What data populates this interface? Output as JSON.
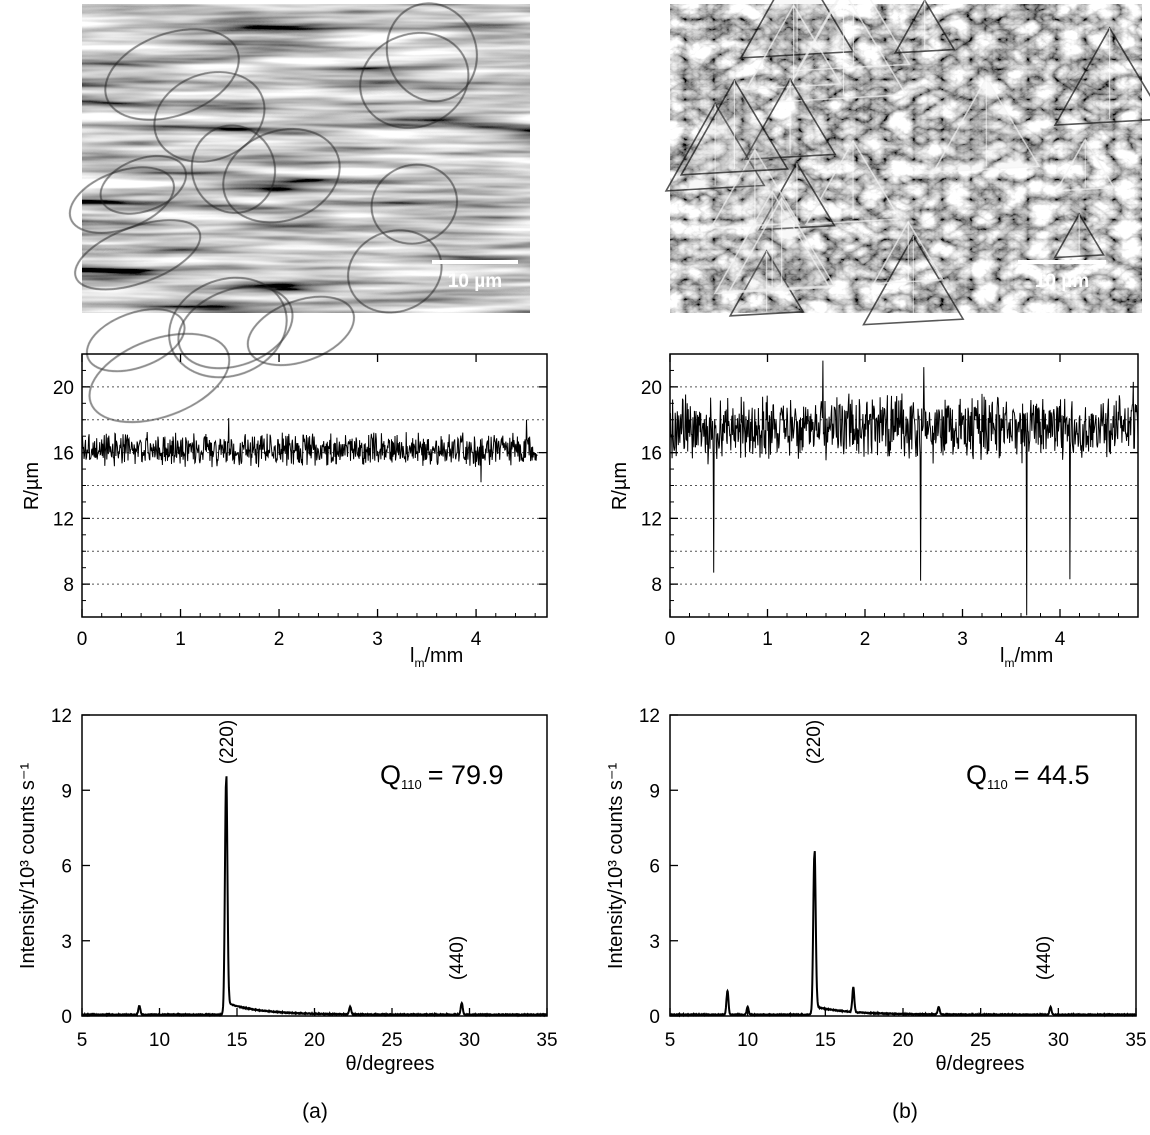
{
  "panels": [
    {
      "label": "(a)",
      "micrograph": {
        "scale_bar": "10 µm",
        "texture": "elongated-grain-facets"
      },
      "roughness": {
        "ylabel": "R/µm",
        "xlabel_main": "l",
        "xlabel_sub": "m",
        "xlabel_unit": "/mm"
      },
      "xrd": {
        "ylabel": "Intensity/10³ counts s⁻¹",
        "xlabel": "θ/degrees",
        "q_main": "Q",
        "q_sub": "110",
        "q_value": "= 79.9",
        "peak_labels": [
          "(220)",
          "(440)"
        ]
      }
    },
    {
      "label": "(b)",
      "micrograph": {
        "scale_bar": "10 µm",
        "texture": "pyramidal-crystallites"
      },
      "roughness": {
        "ylabel": "R/µm",
        "xlabel_main": "l",
        "xlabel_sub": "m",
        "xlabel_unit": "/mm"
      },
      "xrd": {
        "ylabel": "Intensity/10³ counts s⁻¹",
        "xlabel": "θ/degrees",
        "q_main": "Q",
        "q_sub": "110",
        "q_value": "= 44.5",
        "peak_labels": [
          "(220)",
          "(440)"
        ]
      }
    }
  ],
  "chart_data": [
    {
      "type": "line",
      "panel": "a-roughness",
      "xlabel": "l_m/mm",
      "ylabel": "R/µm",
      "xlim": [
        0,
        4.72
      ],
      "ylim": [
        6,
        22
      ],
      "xticks": [
        0,
        1,
        2,
        3,
        4
      ],
      "yticks": [
        8,
        12,
        16,
        20
      ],
      "grid_y": [
        8,
        10,
        12,
        14,
        16,
        18,
        20
      ],
      "series": [
        {
          "x_start": 0,
          "x_end": 4.62,
          "mean": 16.2,
          "amplitude": 0.8,
          "notable": [
            [
              1.49,
              13.8
            ],
            [
              1.49,
              18.1
            ],
            [
              4.51,
              18.0
            ],
            [
              4.05,
              14.2
            ]
          ]
        }
      ]
    },
    {
      "type": "line",
      "panel": "b-roughness",
      "xlabel": "l_m/mm",
      "ylabel": "R/µm",
      "xlim": [
        0,
        4.8
      ],
      "ylim": [
        6,
        22
      ],
      "xticks": [
        0,
        1,
        2,
        3,
        4
      ],
      "yticks": [
        8,
        12,
        16,
        20
      ],
      "grid_y": [
        8,
        10,
        12,
        14,
        16,
        18,
        20
      ],
      "series": [
        {
          "x_start": 0,
          "x_end": 4.8,
          "mean": 17.5,
          "amplitude": 1.6,
          "notable": [
            [
              0.45,
              8.7
            ],
            [
              1.57,
              21.6
            ],
            [
              2.57,
              8.2
            ],
            [
              3.66,
              6.1
            ],
            [
              4.1,
              8.3
            ],
            [
              2.6,
              21.2
            ],
            [
              4.75,
              20.3
            ]
          ]
        }
      ]
    },
    {
      "type": "line",
      "panel": "a-xrd",
      "xlabel": "θ/degrees",
      "ylabel": "Intensity/10³ counts s⁻¹",
      "xlim": [
        5,
        35
      ],
      "ylim": [
        0,
        12
      ],
      "xticks": [
        5,
        10,
        15,
        20,
        25,
        30,
        35
      ],
      "yticks": [
        0,
        3,
        6,
        9,
        12
      ],
      "peaks": [
        [
          8.7,
          0.35
        ],
        [
          14.3,
          9.35
        ],
        [
          22.3,
          0.3
        ],
        [
          29.5,
          0.45
        ]
      ],
      "annotations": [
        "(220)",
        "(440)",
        "Q110 = 79.9"
      ]
    },
    {
      "type": "line",
      "panel": "b-xrd",
      "xlabel": "θ/degrees",
      "ylabel": "Intensity/10³ counts s⁻¹",
      "xlim": [
        5,
        35
      ],
      "ylim": [
        0,
        12
      ],
      "xticks": [
        5,
        10,
        15,
        20,
        25,
        30,
        35
      ],
      "yticks": [
        0,
        3,
        6,
        9,
        12
      ],
      "peaks": [
        [
          8.7,
          0.95
        ],
        [
          10.0,
          0.3
        ],
        [
          14.3,
          6.4
        ],
        [
          16.8,
          1.0
        ],
        [
          22.3,
          0.3
        ],
        [
          29.5,
          0.3
        ]
      ],
      "annotations": [
        "(220)",
        "(440)",
        "Q110 = 44.5"
      ]
    }
  ]
}
